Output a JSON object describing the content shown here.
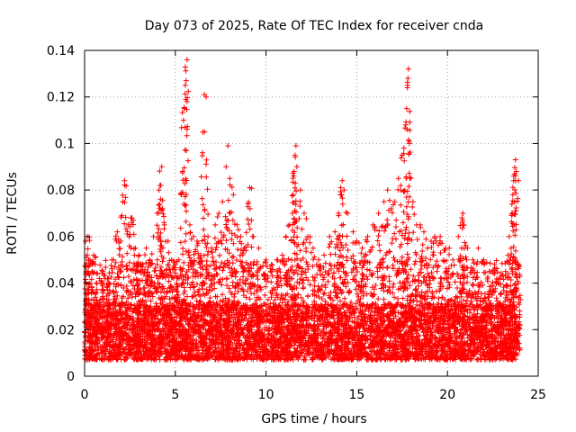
{
  "chart_data": {
    "type": "scatter",
    "title": "Day 073 of 2025, Rate Of TEC Index for receiver cnda",
    "xlabel": "GPS time / hours",
    "ylabel": "ROTI / TECUs",
    "xlim": [
      0,
      25
    ],
    "ylim": [
      0,
      0.14
    ],
    "x_ticks": [
      0,
      5,
      10,
      15,
      20,
      25
    ],
    "x_tick_labels": [
      "0",
      "5",
      "10",
      "15",
      "20",
      "25"
    ],
    "y_ticks": [
      0,
      0.02,
      0.04,
      0.06,
      0.08,
      0.1,
      0.12,
      0.14
    ],
    "y_tick_labels": [
      "0",
      "0.02",
      "0.04",
      "0.06",
      "0.08",
      "0.1",
      "0.12",
      "0.14"
    ],
    "grid": true,
    "marker": "+",
    "color": "#ff0000",
    "series": [
      {
        "name": "ROTI",
        "points": [
          [
            0.05,
            0.058
          ],
          [
            0.1,
            0.051
          ],
          [
            0.15,
            0.06
          ],
          [
            0.2,
            0.045
          ],
          [
            0.3,
            0.05
          ],
          [
            0.5,
            0.052
          ],
          [
            0.7,
            0.044
          ],
          [
            1.0,
            0.045
          ],
          [
            1.3,
            0.042
          ],
          [
            1.6,
            0.05
          ],
          [
            1.8,
            0.062
          ],
          [
            2.0,
            0.058
          ],
          [
            2.1,
            0.075
          ],
          [
            2.2,
            0.084
          ],
          [
            2.4,
            0.065
          ],
          [
            2.6,
            0.068
          ],
          [
            2.8,
            0.055
          ],
          [
            3.0,
            0.052
          ],
          [
            3.2,
            0.048
          ],
          [
            3.4,
            0.055
          ],
          [
            3.6,
            0.05
          ],
          [
            3.8,
            0.06
          ],
          [
            4.0,
            0.07
          ],
          [
            4.1,
            0.08
          ],
          [
            4.2,
            0.082
          ],
          [
            4.25,
            0.09
          ],
          [
            4.3,
            0.072
          ],
          [
            4.4,
            0.065
          ],
          [
            4.6,
            0.058
          ],
          [
            4.8,
            0.05
          ],
          [
            5.0,
            0.048
          ],
          [
            5.2,
            0.05
          ],
          [
            5.4,
            0.088
          ],
          [
            5.45,
            0.11
          ],
          [
            5.5,
            0.115
          ],
          [
            5.55,
            0.125
          ],
          [
            5.6,
            0.127
          ],
          [
            5.65,
            0.136
          ],
          [
            5.8,
            0.065
          ],
          [
            6.0,
            0.06
          ],
          [
            6.2,
            0.058
          ],
          [
            6.4,
            0.052
          ],
          [
            6.5,
            0.096
          ],
          [
            6.6,
            0.121
          ],
          [
            6.7,
            0.12
          ],
          [
            6.8,
            0.06
          ],
          [
            7.0,
            0.055
          ],
          [
            7.2,
            0.065
          ],
          [
            7.4,
            0.07
          ],
          [
            7.6,
            0.075
          ],
          [
            7.8,
            0.09
          ],
          [
            7.9,
            0.099
          ],
          [
            8.0,
            0.085
          ],
          [
            8.2,
            0.078
          ],
          [
            8.4,
            0.065
          ],
          [
            8.6,
            0.06
          ],
          [
            8.8,
            0.055
          ],
          [
            9.0,
            0.074
          ],
          [
            9.1,
            0.081
          ],
          [
            9.3,
            0.06
          ],
          [
            9.6,
            0.055
          ],
          [
            10.0,
            0.05
          ],
          [
            10.3,
            0.048
          ],
          [
            10.6,
            0.05
          ],
          [
            10.9,
            0.052
          ],
          [
            11.1,
            0.06
          ],
          [
            11.3,
            0.065
          ],
          [
            11.45,
            0.07
          ],
          [
            11.5,
            0.078
          ],
          [
            11.55,
            0.088
          ],
          [
            11.6,
            0.095
          ],
          [
            11.65,
            0.099
          ],
          [
            11.7,
            0.09
          ],
          [
            11.9,
            0.08
          ],
          [
            12.1,
            0.07
          ],
          [
            12.3,
            0.06
          ],
          [
            12.6,
            0.055
          ],
          [
            12.9,
            0.05
          ],
          [
            13.2,
            0.052
          ],
          [
            13.5,
            0.06
          ],
          [
            13.8,
            0.062
          ],
          [
            14.0,
            0.07
          ],
          [
            14.1,
            0.078
          ],
          [
            14.2,
            0.084
          ],
          [
            14.3,
            0.08
          ],
          [
            14.5,
            0.07
          ],
          [
            14.8,
            0.062
          ],
          [
            15.0,
            0.058
          ],
          [
            15.3,
            0.055
          ],
          [
            15.6,
            0.06
          ],
          [
            15.9,
            0.065
          ],
          [
            16.2,
            0.07
          ],
          [
            16.5,
            0.075
          ],
          [
            16.7,
            0.08
          ],
          [
            16.9,
            0.072
          ],
          [
            17.1,
            0.075
          ],
          [
            17.3,
            0.085
          ],
          [
            17.5,
            0.095
          ],
          [
            17.6,
            0.098
          ],
          [
            17.7,
            0.108
          ],
          [
            17.75,
            0.115
          ],
          [
            17.8,
            0.125
          ],
          [
            17.82,
            0.128
          ],
          [
            17.85,
            0.132
          ],
          [
            17.9,
            0.1
          ],
          [
            18.1,
            0.075
          ],
          [
            18.3,
            0.065
          ],
          [
            18.5,
            0.065
          ],
          [
            18.7,
            0.062
          ],
          [
            18.9,
            0.055
          ],
          [
            19.1,
            0.058
          ],
          [
            19.3,
            0.06
          ],
          [
            19.6,
            0.06
          ],
          [
            19.9,
            0.055
          ],
          [
            20.1,
            0.055
          ],
          [
            20.3,
            0.05
          ],
          [
            20.6,
            0.06
          ],
          [
            20.8,
            0.068
          ],
          [
            20.85,
            0.07
          ],
          [
            20.9,
            0.065
          ],
          [
            21.1,
            0.055
          ],
          [
            21.4,
            0.05
          ],
          [
            21.7,
            0.055
          ],
          [
            22.0,
            0.05
          ],
          [
            22.3,
            0.045
          ],
          [
            22.6,
            0.048
          ],
          [
            22.9,
            0.042
          ],
          [
            23.2,
            0.045
          ],
          [
            23.4,
            0.06
          ],
          [
            23.55,
            0.07
          ],
          [
            23.6,
            0.078
          ],
          [
            23.65,
            0.086
          ],
          [
            23.7,
            0.087
          ],
          [
            23.75,
            0.093
          ],
          [
            23.8,
            0.088
          ],
          [
            23.9,
            0.048
          ]
        ],
        "dense_band": {
          "description": "densely overplotted points covering the full time range",
          "x_range": [
            0,
            24
          ],
          "y_range": [
            0.003,
            0.04
          ],
          "typical_y": 0.017
        }
      }
    ]
  }
}
